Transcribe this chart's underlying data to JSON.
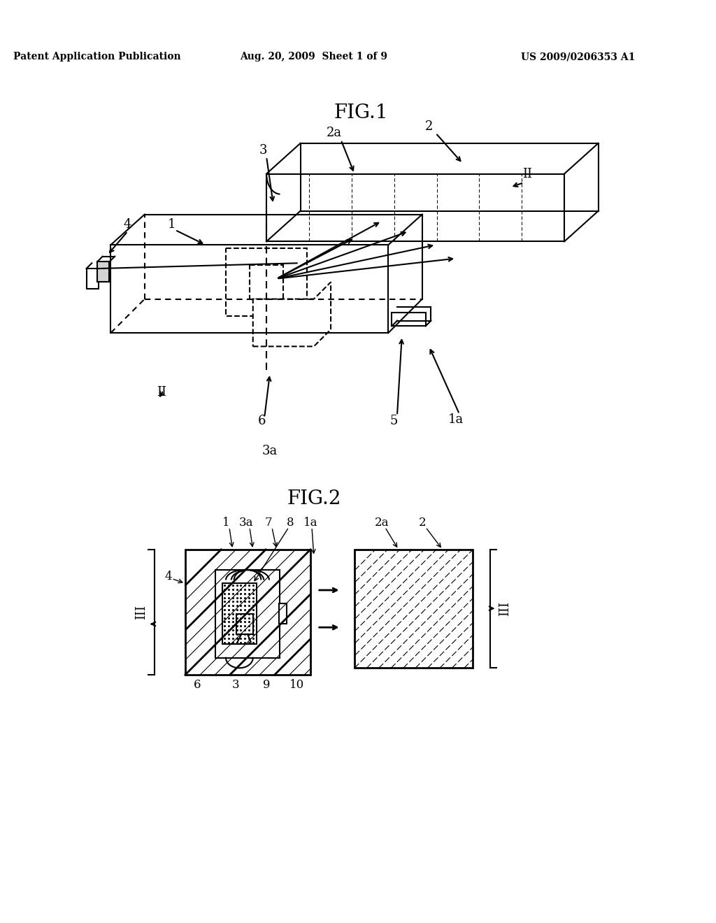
{
  "bg_color": "#ffffff",
  "header_left": "Patent Application Publication",
  "header_mid": "Aug. 20, 2009  Sheet 1 of 9",
  "header_right": "US 2009/0206353 A1",
  "fig1_title": "FIG.1",
  "fig2_title": "FIG.2"
}
